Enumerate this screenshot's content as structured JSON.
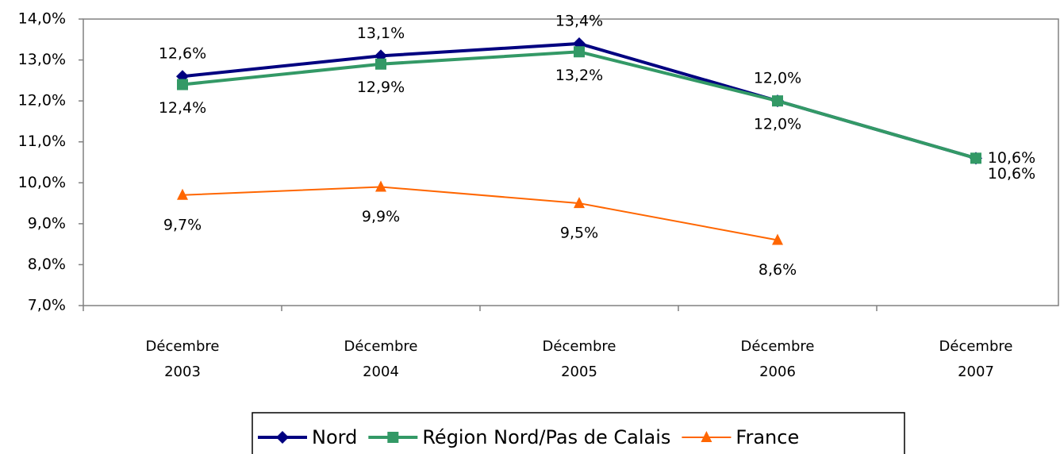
{
  "chart_data": {
    "type": "line",
    "categories": [
      "Décembre 2003",
      "Décembre 2004",
      "Décembre 2005",
      "Décembre 2006",
      "Décembre 2007"
    ],
    "series": [
      {
        "name": "Nord",
        "color": "#000080",
        "values": [
          12.6,
          13.1,
          13.4,
          12.0,
          10.6
        ],
        "value_labels": [
          "12,6%",
          "13,1%",
          "13,4%",
          "12,0%",
          "10,6%"
        ]
      },
      {
        "name": "Région Nord/Pas de Calais",
        "color": "#339966",
        "values": [
          12.4,
          12.9,
          13.2,
          12.0,
          10.6
        ],
        "value_labels": [
          "12,4%",
          "12,9%",
          "13,2%",
          "12,0%",
          "10,6%"
        ]
      },
      {
        "name": "France",
        "color": "#ff6600",
        "values": [
          9.7,
          9.9,
          9.5,
          8.6,
          null
        ],
        "value_labels": [
          "9,7%",
          "9,9%",
          "9,5%",
          "8,6%",
          null
        ]
      }
    ],
    "ylim": [
      7,
      14
    ],
    "yticks": [
      {
        "value": 7,
        "label": "7,0%"
      },
      {
        "value": 8,
        "label": "8,0%"
      },
      {
        "value": 9,
        "label": "9,0%"
      },
      {
        "value": 10,
        "label": "10,0%"
      },
      {
        "value": 11,
        "label": "11,0%"
      },
      {
        "value": 12,
        "label": "12,0%"
      },
      {
        "value": 13,
        "label": "13,0%"
      },
      {
        "value": 14,
        "label": "14,0%"
      }
    ],
    "legend": "bottom"
  }
}
